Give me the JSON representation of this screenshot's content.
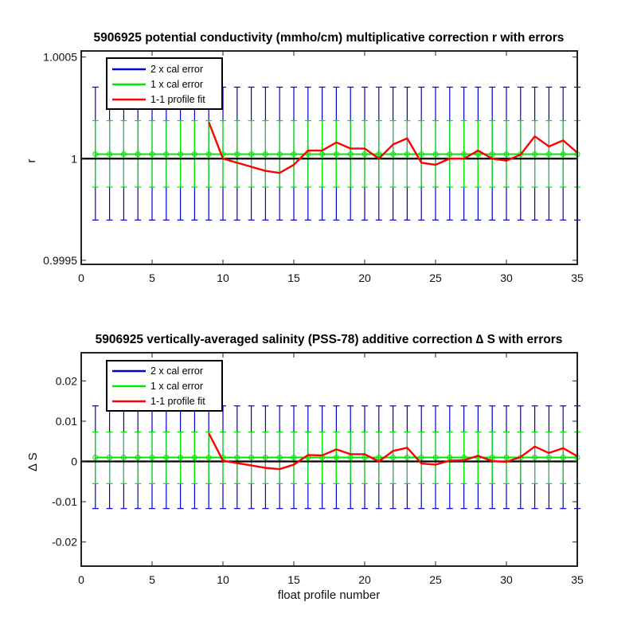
{
  "chart_data": [
    {
      "type": "line",
      "title": "5906925 potential conductivity (mmho/cm) multiplicative correction r with errors",
      "xlabel": "",
      "ylabel": "r",
      "xlim": [
        0,
        35
      ],
      "ylim": [
        0.99948,
        1.00053
      ],
      "xticks": [
        0,
        5,
        10,
        15,
        20,
        25,
        30,
        35
      ],
      "xtick_labels": [
        "0",
        "5",
        "10",
        "15",
        "20",
        "25",
        "30",
        "35"
      ],
      "yticks": [
        0.9995,
        1.0,
        1.0005
      ],
      "ytick_labels": [
        "0.9995",
        "1",
        "1.0005"
      ],
      "grid": false,
      "legend": {
        "position": "top-left",
        "entries": [
          "2 x cal error",
          "1 x cal error",
          "1-1 profile fit"
        ]
      },
      "reference_line": {
        "y": 1.0,
        "color": "#000000"
      },
      "series": [
        {
          "name": "2 x cal error",
          "kind": "errorbar",
          "color": "#0000cc",
          "x": [
            1,
            2,
            3,
            4,
            5,
            6,
            7,
            8,
            9,
            10,
            11,
            12,
            13,
            14,
            15,
            16,
            17,
            18,
            19,
            20,
            21,
            22,
            23,
            24,
            25,
            26,
            27,
            28,
            29,
            30,
            31,
            32,
            33,
            34,
            35
          ],
          "center": 1.000022,
          "upper": 1.000352,
          "lower": 0.999698
        },
        {
          "name": "1 x cal error",
          "kind": "errorbar",
          "color": "#00e600",
          "x": [
            1,
            2,
            3,
            4,
            5,
            6,
            7,
            8,
            9,
            10,
            11,
            12,
            13,
            14,
            15,
            16,
            17,
            18,
            19,
            20,
            21,
            22,
            23,
            24,
            25,
            26,
            27,
            28,
            29,
            30,
            31,
            32,
            33,
            34,
            35
          ],
          "center": 1.000022,
          "upper": 1.000187,
          "lower": 0.99986
        },
        {
          "name": "1-1 profile fit",
          "kind": "line",
          "color": "#ff0000",
          "x": [
            9,
            10,
            11,
            12,
            13,
            14,
            15,
            16,
            17,
            18,
            19,
            20,
            21,
            22,
            23,
            24,
            25,
            26,
            27,
            28,
            29,
            30,
            31,
            32,
            33,
            34,
            35
          ],
          "y": [
            1.00018,
            1.0,
            0.99998,
            0.99996,
            0.99994,
            0.99993,
            0.99997,
            1.00004,
            1.00004,
            1.00008,
            1.00005,
            1.00005,
            1.0,
            1.00007,
            1.0001,
            0.99998,
            0.99997,
            1.0,
            1.0,
            1.00004,
            1.0,
            0.99999,
            1.00002,
            1.00011,
            1.00006,
            1.00009,
            1.00003
          ]
        }
      ]
    },
    {
      "type": "line",
      "title": "5906925 vertically-averaged salinity (PSS-78) additive correction ∆ S with errors",
      "xlabel": "float profile number",
      "ylabel": "∆ S",
      "xlim": [
        0,
        35
      ],
      "ylim": [
        -0.026,
        0.027
      ],
      "xticks": [
        0,
        5,
        10,
        15,
        20,
        25,
        30,
        35
      ],
      "xtick_labels": [
        "0",
        "5",
        "10",
        "15",
        "20",
        "25",
        "30",
        "35"
      ],
      "yticks": [
        -0.02,
        -0.01,
        0,
        0.01,
        0.02
      ],
      "ytick_labels": [
        "-0.02",
        "-0.01",
        "0",
        "0.01",
        "0.02"
      ],
      "grid": false,
      "legend": {
        "position": "top-left",
        "entries": [
          "2 x cal error",
          "1 x cal error",
          "1-1 profile fit"
        ]
      },
      "reference_line": {
        "y": 0,
        "color": "#000000"
      },
      "series": [
        {
          "name": "2 x cal error",
          "kind": "errorbar",
          "color": "#0000cc",
          "x": [
            1,
            2,
            3,
            4,
            5,
            6,
            7,
            8,
            9,
            10,
            11,
            12,
            13,
            14,
            15,
            16,
            17,
            18,
            19,
            20,
            21,
            22,
            23,
            24,
            25,
            26,
            27,
            28,
            29,
            30,
            31,
            32,
            33,
            34,
            35
          ],
          "center": 0.001,
          "upper": 0.0138,
          "lower": -0.0117
        },
        {
          "name": "1 x cal error",
          "kind": "errorbar",
          "color": "#00e600",
          "x": [
            1,
            2,
            3,
            4,
            5,
            6,
            7,
            8,
            9,
            10,
            11,
            12,
            13,
            14,
            15,
            16,
            17,
            18,
            19,
            20,
            21,
            22,
            23,
            24,
            25,
            26,
            27,
            28,
            29,
            30,
            31,
            32,
            33,
            34,
            35
          ],
          "center": 0.001,
          "upper": 0.0073,
          "lower": -0.0055
        },
        {
          "name": "1-1 profile fit",
          "kind": "line",
          "color": "#ff0000",
          "x": [
            9,
            10,
            11,
            12,
            13,
            14,
            15,
            16,
            17,
            18,
            19,
            20,
            21,
            22,
            23,
            24,
            25,
            26,
            27,
            28,
            29,
            30,
            31,
            32,
            33,
            34,
            35
          ],
          "y": [
            0.007,
            0.0002,
            -0.0004,
            -0.001,
            -0.0016,
            -0.0019,
            -0.0008,
            0.0016,
            0.0015,
            0.003,
            0.0018,
            0.0018,
            0.0,
            0.0026,
            0.0034,
            -0.0005,
            -0.0008,
            0.0002,
            0.0003,
            0.0014,
            0.0001,
            -0.0001,
            0.0011,
            0.0037,
            0.0021,
            0.0033,
            0.0013
          ]
        }
      ]
    }
  ]
}
